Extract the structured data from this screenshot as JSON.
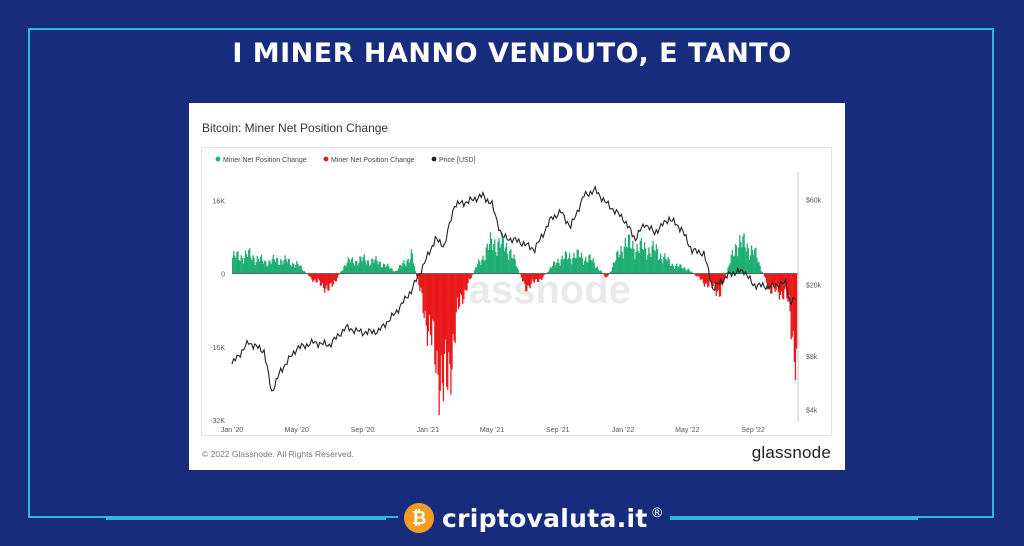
{
  "headline": "I MINER HANNO VENDUTO, E TANTO",
  "card": {
    "title": "Bitcoin: Miner Net Position Change",
    "copyright": "© 2022 Glassnode. All Rights Reserved.",
    "brand": "glassnode",
    "watermark": "glassnode"
  },
  "footer": {
    "brand": "criptovaluta.it",
    "registered": "®",
    "coin_symbol": "₿"
  },
  "colors": {
    "background": "#182c7e",
    "frame": "#2fb7d8",
    "positive": "#1fae73",
    "negative": "#e8191b",
    "price": "#222222",
    "coin": "#f39c1f"
  },
  "chart_data": {
    "type": "area",
    "legend_position": "top-left",
    "legend": [
      {
        "label": "Miner Net Position Change",
        "color": "#1fae73"
      },
      {
        "label": "Miner Net Position Change",
        "color": "#e8191b"
      },
      {
        "label": "Price [USD]",
        "color": "#222222"
      }
    ],
    "x_ticks": [
      "Jan '20",
      "May '20",
      "Sep '20",
      "Jan '21",
      "May '21",
      "Sep '21",
      "Jan '22",
      "May '22",
      "Sep '22"
    ],
    "y_left_ticks": [
      "16K",
      "0",
      "-16K",
      "-32K"
    ],
    "y_left_range": [
      -32000,
      20000
    ],
    "y_right_ticks": [
      "$60k",
      "$20k",
      "$8k",
      "$4k"
    ],
    "y_right_scale": "log",
    "y_right_range": [
      3500,
      75000
    ],
    "grid": false,
    "net_position_change": {
      "dates": [
        "2020-01-01",
        "2020-02-01",
        "2020-03-01",
        "2020-04-01",
        "2020-05-01",
        "2020-06-01",
        "2020-07-01",
        "2020-08-01",
        "2020-09-01",
        "2020-10-01",
        "2020-11-01",
        "2020-12-01",
        "2021-01-01",
        "2021-02-01",
        "2021-03-01",
        "2021-04-01",
        "2021-05-01",
        "2021-06-01",
        "2021-07-01",
        "2021-08-01",
        "2021-09-01",
        "2021-10-01",
        "2021-11-01",
        "2021-12-01",
        "2022-01-01",
        "2022-02-01",
        "2022-03-01",
        "2022-04-01",
        "2022-05-01",
        "2022-06-01",
        "2022-07-01",
        "2022-08-01",
        "2022-09-01",
        "2022-10-01",
        "2022-11-01",
        "2022-11-20"
      ],
      "values": [
        3500,
        4000,
        2500,
        3000,
        2000,
        -1500,
        -3500,
        2500,
        3000,
        2500,
        500,
        4000,
        -12000,
        -26000,
        -6000,
        1500,
        7000,
        5500,
        -3000,
        -1000,
        3000,
        4000,
        3000,
        -1000,
        6500,
        5500,
        5000,
        2000,
        1000,
        -2000,
        -4000,
        7000,
        5000,
        -3500,
        -4500,
        -18000
      ],
      "unit": "BTC"
    },
    "price_usd": {
      "dates": [
        "2020-01-01",
        "2020-02-01",
        "2020-03-01",
        "2020-03-15",
        "2020-04-01",
        "2020-05-01",
        "2020-06-01",
        "2020-07-01",
        "2020-08-01",
        "2020-09-01",
        "2020-10-01",
        "2020-11-01",
        "2020-12-01",
        "2021-01-01",
        "2021-01-15",
        "2021-02-01",
        "2021-02-20",
        "2021-03-15",
        "2021-04-14",
        "2021-05-01",
        "2021-05-20",
        "2021-06-20",
        "2021-07-20",
        "2021-08-20",
        "2021-09-07",
        "2021-09-25",
        "2021-10-20",
        "2021-11-10",
        "2021-12-01",
        "2022-01-01",
        "2022-01-24",
        "2022-02-10",
        "2022-03-01",
        "2022-03-28",
        "2022-04-20",
        "2022-05-10",
        "2022-06-01",
        "2022-06-18",
        "2022-07-20",
        "2022-08-15",
        "2022-09-01",
        "2022-10-01",
        "2022-11-01",
        "2022-11-09",
        "2022-11-20"
      ],
      "values": [
        7200,
        9500,
        8500,
        5000,
        6600,
        8800,
        9500,
        9200,
        11500,
        10800,
        11000,
        13800,
        18500,
        29000,
        36000,
        33000,
        56000,
        58000,
        63000,
        56000,
        37000,
        35000,
        31500,
        47000,
        51000,
        42000,
        63000,
        67500,
        57000,
        47000,
        36000,
        44000,
        39000,
        47000,
        41000,
        31000,
        30000,
        19000,
        23000,
        24000,
        20000,
        19500,
        20500,
        16000,
        16500
      ]
    }
  }
}
